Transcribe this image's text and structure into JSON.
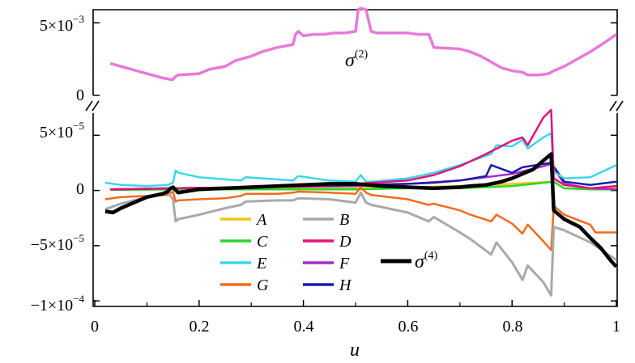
{
  "chart_data": [
    {
      "type": "line",
      "panel": "top",
      "title": "",
      "xlabel": "",
      "ylabel": "",
      "xlim": [
        0,
        1
      ],
      "ylim": [
        0,
        0.0059
      ],
      "ytick_labels": [
        {
          "value": 0.005,
          "mantissa": "5×10",
          "exponent": "−3"
        },
        {
          "value": 0,
          "mantissa": "0",
          "exponent": ""
        }
      ],
      "annotation": {
        "symbol": "σ",
        "superscript": "(2)"
      },
      "series": [
        {
          "name": "σ(2)",
          "color": "#e879d9",
          "x": [
            0.03,
            0.05,
            0.08,
            0.11,
            0.13,
            0.145,
            0.15,
            0.155,
            0.16,
            0.2,
            0.22,
            0.25,
            0.27,
            0.3,
            0.32,
            0.35,
            0.38,
            0.385,
            0.39,
            0.4,
            0.42,
            0.44,
            0.46,
            0.48,
            0.5,
            0.505,
            0.51,
            0.52,
            0.53,
            0.54,
            0.56,
            0.6,
            0.62,
            0.64,
            0.645,
            0.65,
            0.7,
            0.72,
            0.74,
            0.76,
            0.78,
            0.8,
            0.82,
            0.83,
            0.85,
            0.87,
            0.88,
            0.9,
            0.92,
            0.95,
            0.98,
            1.0
          ],
          "y": [
            0.0022,
            0.002,
            0.0017,
            0.0014,
            0.0012,
            0.0011,
            0.0011,
            0.0013,
            0.0014,
            0.0015,
            0.0018,
            0.002,
            0.0024,
            0.0027,
            0.003,
            0.0033,
            0.0035,
            0.0042,
            0.0044,
            0.0041,
            0.0042,
            0.0042,
            0.0043,
            0.0043,
            0.0044,
            0.0059,
            0.006,
            0.0059,
            0.0044,
            0.0043,
            0.0043,
            0.0043,
            0.0042,
            0.0042,
            0.0038,
            0.0033,
            0.0032,
            0.003,
            0.0027,
            0.0023,
            0.0019,
            0.0017,
            0.0016,
            0.0014,
            0.0014,
            0.0015,
            0.0017,
            0.002,
            0.0024,
            0.003,
            0.0037,
            0.0042
          ]
        }
      ]
    },
    {
      "type": "line",
      "panel": "bottom",
      "title": "",
      "xlabel": "u",
      "ylabel": "",
      "xlim": [
        0,
        1
      ],
      "ylim": [
        -0.000105,
        7e-05
      ],
      "xtick_labels": [
        "0",
        "0.2",
        "0.4",
        "0.6",
        "0.8",
        "1"
      ],
      "xtick_values": [
        0,
        0.2,
        0.4,
        0.6,
        0.8,
        1.0
      ],
      "ytick_labels": [
        {
          "value": 5e-05,
          "mantissa": "5×10",
          "exponent": "−5"
        },
        {
          "value": 0,
          "mantissa": "0",
          "exponent": ""
        },
        {
          "value": -5e-05,
          "mantissa": "−5×10",
          "exponent": "−5"
        },
        {
          "value": -0.0001,
          "mantissa": "−1×10",
          "exponent": "−4"
        }
      ],
      "legend": [
        {
          "label": "A",
          "color": "#f2c615"
        },
        {
          "label": "B",
          "color": "#a9a9a9"
        },
        {
          "label": "C",
          "color": "#2bd62b"
        },
        {
          "label": "D",
          "color": "#e0137c"
        },
        {
          "label": "E",
          "color": "#3ad7e8"
        },
        {
          "label": "F",
          "color": "#a32fc9"
        },
        {
          "label": "G",
          "color": "#f26b1d"
        },
        {
          "label": "H",
          "color": "#1c1ca8"
        }
      ],
      "black_series_label": {
        "symbol": "σ",
        "superscript": "(4)"
      },
      "series": [
        {
          "name": "A",
          "color": "#f2c615",
          "width": 2.5,
          "x": [
            0.03,
            0.15,
            0.3,
            0.5,
            0.6,
            0.7,
            0.8,
            0.88,
            0.9,
            0.95,
            1.0
          ],
          "y": [
            5e-07,
            1e-06,
            2e-06,
            2e-06,
            3e-06,
            4e-06,
            6e-06,
            8e-06,
            2e-06,
            1e-06,
            3e-06
          ]
        },
        {
          "name": "C",
          "color": "#2bd62b",
          "width": 2.5,
          "x": [
            0.03,
            0.15,
            0.3,
            0.5,
            0.6,
            0.7,
            0.8,
            0.88,
            0.9,
            0.95,
            1.0
          ],
          "y": [
            5e-07,
            1e-06,
            1e-06,
            1e-06,
            2e-06,
            2e-06,
            4e-06,
            8e-06,
            2e-06,
            1e-06,
            1e-06
          ]
        },
        {
          "name": "F",
          "color": "#a32fc9",
          "width": 2.5,
          "x": [
            0.03,
            0.15,
            0.3,
            0.5,
            0.6,
            0.7,
            0.8,
            0.86,
            0.875,
            0.9,
            0.95,
            1.0
          ],
          "y": [
            1e-06,
            2e-06,
            3e-06,
            4e-06,
            6e-06,
            9e-06,
            1.5e-05,
            2.2e-05,
            2.4e-05,
            6e-06,
            2e-06,
            1e-06
          ]
        },
        {
          "name": "H",
          "color": "#1c1ca8",
          "width": 2.5,
          "x": [
            0.03,
            0.15,
            0.3,
            0.4,
            0.5,
            0.6,
            0.65,
            0.7,
            0.75,
            0.76,
            0.8,
            0.82,
            0.86,
            0.875,
            0.9,
            0.95,
            1.0
          ],
          "y": [
            1e-06,
            2e-06,
            3e-06,
            4e-06,
            5e-06,
            6e-06,
            7e-06,
            9e-06,
            1.3e-05,
            2.3e-05,
            1.6e-05,
            2.1e-05,
            2.4e-05,
            2.5e-05,
            8e-06,
            5e-06,
            8e-06
          ]
        },
        {
          "name": "E",
          "color": "#3ad7e8",
          "width": 2.5,
          "x": [
            0.02,
            0.05,
            0.1,
            0.14,
            0.15,
            0.155,
            0.16,
            0.2,
            0.25,
            0.28,
            0.29,
            0.35,
            0.38,
            0.39,
            0.45,
            0.5,
            0.51,
            0.52,
            0.53,
            0.6,
            0.65,
            0.7,
            0.76,
            0.77,
            0.8,
            0.82,
            0.83,
            0.86,
            0.875,
            0.88,
            0.9,
            0.95,
            1.0
          ],
          "y": [
            7e-06,
            5e-06,
            4e-06,
            5e-06,
            7e-06,
            1.8e-05,
            1.6e-05,
            1.2e-05,
            1e-05,
            9e-06,
            1.2e-05,
            1e-05,
            9e-06,
            1.3e-05,
            9e-06,
            8e-06,
            1.4e-05,
            8e-06,
            8e-06,
            1.1e-05,
            1.6e-05,
            2.3e-05,
            3.3e-05,
            4.1e-05,
            4e-05,
            4.6e-05,
            3.8e-05,
            4.8e-05,
            5.2e-05,
            1.7e-05,
            1.1e-05,
            1.2e-05,
            2.3e-05
          ]
        },
        {
          "name": "D",
          "color": "#e0137c",
          "width": 2.5,
          "x": [
            0.03,
            0.15,
            0.3,
            0.4,
            0.5,
            0.6,
            0.65,
            0.7,
            0.75,
            0.8,
            0.82,
            0.83,
            0.86,
            0.875,
            0.88,
            0.9,
            0.95,
            1.0
          ],
          "y": [
            1e-06,
            2e-06,
            3e-06,
            4e-06,
            6e-06,
            9e-06,
            1.4e-05,
            2.2e-05,
            3.3e-05,
            4.5e-05,
            4.8e-05,
            4.1e-05,
            6.6e-05,
            7.3e-05,
            1.1e-05,
            5e-06,
            2e-06,
            4e-06
          ]
        },
        {
          "name": "G",
          "color": "#f26b1d",
          "width": 2.5,
          "x": [
            0.02,
            0.05,
            0.1,
            0.14,
            0.15,
            0.155,
            0.16,
            0.2,
            0.25,
            0.28,
            0.29,
            0.35,
            0.38,
            0.39,
            0.45,
            0.5,
            0.51,
            0.52,
            0.53,
            0.6,
            0.64,
            0.65,
            0.7,
            0.72,
            0.76,
            0.77,
            0.8,
            0.82,
            0.83,
            0.86,
            0.875,
            0.88,
            0.9,
            0.95,
            0.96,
            1.0
          ],
          "y": [
            -8e-06,
            -6e-06,
            -5e-06,
            -4e-06,
            -1e-06,
            -1e-05,
            -9e-06,
            -8e-06,
            -7e-06,
            -5e-06,
            -3e-06,
            -3e-06,
            -2e-06,
            -1e-06,
            -2e-06,
            -3e-06,
            3e-06,
            -2e-06,
            -4e-06,
            -8e-06,
            -1.3e-05,
            -1.2e-05,
            -1.8e-05,
            -2.2e-05,
            -2.8e-05,
            -2.2e-05,
            -3e-05,
            -3.9e-05,
            -3.1e-05,
            -4.6e-05,
            -5.4e-05,
            -1.4e-05,
            -2.2e-05,
            -3.1e-05,
            -3.8e-05,
            -3.8e-05
          ]
        },
        {
          "name": "B",
          "color": "#a9a9a9",
          "width": 3,
          "x": [
            0.02,
            0.05,
            0.1,
            0.14,
            0.15,
            0.155,
            0.16,
            0.2,
            0.25,
            0.28,
            0.29,
            0.35,
            0.38,
            0.39,
            0.45,
            0.5,
            0.51,
            0.52,
            0.53,
            0.6,
            0.64,
            0.65,
            0.7,
            0.72,
            0.76,
            0.77,
            0.8,
            0.82,
            0.83,
            0.86,
            0.875,
            0.88,
            0.9,
            0.95,
            1.0
          ],
          "y": [
            -1.7e-05,
            -1.2e-05,
            -6e-06,
            -2e-06,
            -8e-06,
            -2.8e-05,
            -2.6e-05,
            -2.2e-05,
            -1.6e-05,
            -1.3e-05,
            -1e-05,
            -9e-06,
            -9e-06,
            -7e-06,
            -8e-06,
            -1.1e-05,
            -2e-06,
            -1.1e-05,
            -1.3e-05,
            -2e-05,
            -2.8e-05,
            -2.4e-05,
            -3.8e-05,
            -4.4e-05,
            -5.8e-05,
            -4.7e-05,
            -6.5e-05,
            -8.1e-05,
            -6.8e-05,
            -8.3e-05,
            -9.5e-05,
            -3.3e-05,
            -3.6e-05,
            -4.7e-05,
            -6.3e-05
          ]
        },
        {
          "name": "σ(4)",
          "color": "#000000",
          "width": 4.5,
          "x": [
            0.02,
            0.035,
            0.05,
            0.08,
            0.1,
            0.13,
            0.14,
            0.145,
            0.15,
            0.16,
            0.2,
            0.25,
            0.3,
            0.35,
            0.4,
            0.45,
            0.5,
            0.55,
            0.6,
            0.65,
            0.7,
            0.72,
            0.75,
            0.78,
            0.8,
            0.82,
            0.84,
            0.86,
            0.875,
            0.88,
            0.9,
            0.93,
            0.95,
            0.97,
            0.99,
            1.0
          ],
          "y": [
            -1.9e-05,
            -2e-05,
            -1.6e-05,
            -1e-05,
            -6e-06,
            -3e-06,
            -1e-06,
            2e-06,
            3e-06,
            -2e-06,
            1e-06,
            2e-06,
            3e-06,
            4e-06,
            5e-06,
            6e-06,
            6e-06,
            4e-06,
            3e-06,
            2e-06,
            3e-06,
            4e-06,
            5e-06,
            8e-06,
            1.1e-05,
            1.5e-05,
            1.9e-05,
            2.7e-05,
            3.3e-05,
            -1.8e-05,
            -2.6e-05,
            -3.3e-05,
            -4.3e-05,
            -5.2e-05,
            -6.4e-05,
            -6.9e-05
          ]
        }
      ]
    }
  ]
}
